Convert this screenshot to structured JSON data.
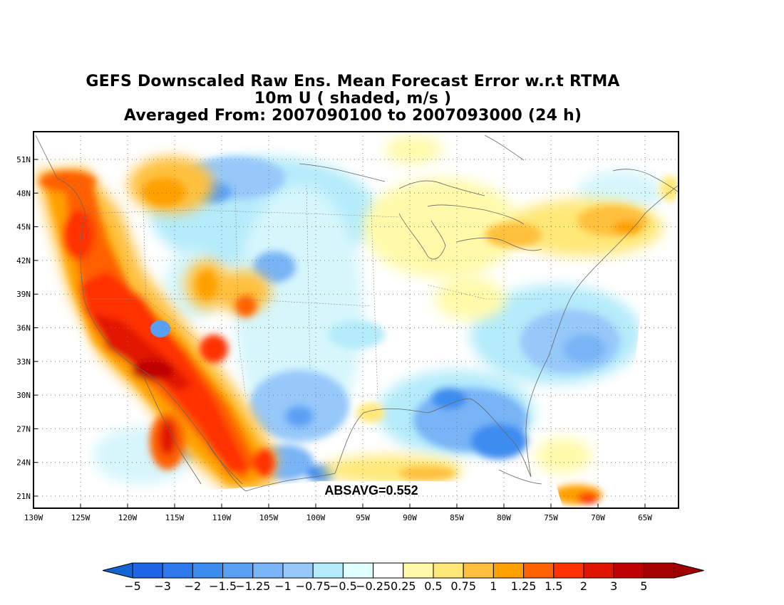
{
  "title": {
    "line1": "GEFS Downscaled Raw Ens. Mean Forecast Error w.r.t RTMA",
    "line2": "10m U ( shaded, m/s )",
    "line3": "Averaged From: 2007090100 to 2007093000 (24 h)"
  },
  "map": {
    "lat_labels": [
      "51N",
      "48N",
      "45N",
      "42N",
      "39N",
      "36N",
      "33N",
      "30N",
      "27N",
      "24N",
      "21N"
    ],
    "lon_labels": [
      "130W",
      "125W",
      "120W",
      "115W",
      "110W",
      "105W",
      "100W",
      "95W",
      "90W",
      "85W",
      "80W",
      "75W",
      "70W",
      "65W"
    ],
    "annotation": "ABSAVG=0.552",
    "grid": "dotted"
  },
  "colorbar": {
    "labels": [
      "−5",
      "−3",
      "−2",
      "−1.5",
      "−1.25",
      "−1",
      "−0.75",
      "−0.5",
      "−0.25",
      "0.25",
      "0.5",
      "0.75",
      "1",
      "1.25",
      "1.5",
      "2",
      "3",
      "5"
    ],
    "colors": [
      "#1e64e6",
      "#2c78ec",
      "#3c8cf0",
      "#5aa0f2",
      "#78b4f6",
      "#96c8fa",
      "#b4ebfa",
      "#e1fffd",
      "#ffffff",
      "#fffaaa",
      "#ffe878",
      "#ffc03c",
      "#ffa000",
      "#ff6000",
      "#ff3200",
      "#e11400",
      "#c00000",
      "#a50000"
    ],
    "left_arrow_color": "#1464d2",
    "right_arrow_color": "#a00000"
  }
}
